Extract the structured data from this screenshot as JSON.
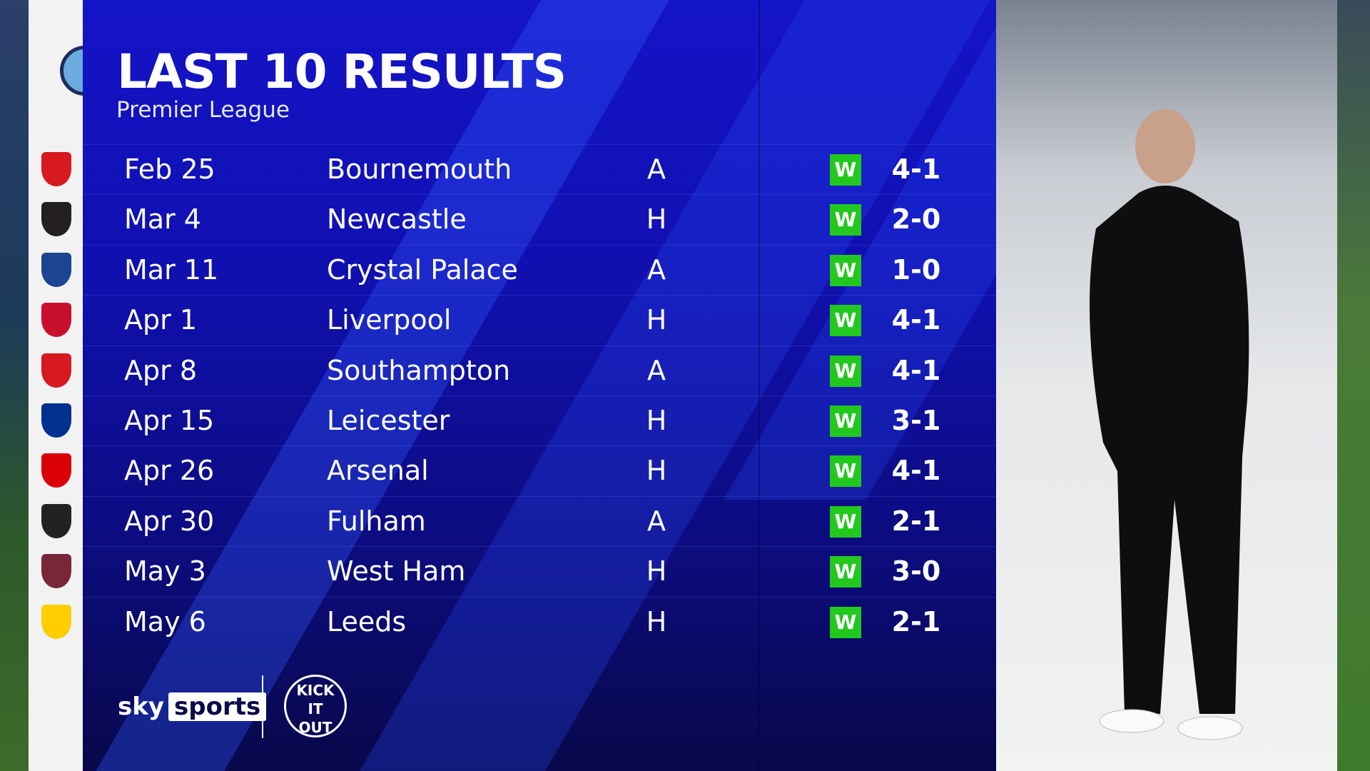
{
  "header": {
    "title": "LAST 10 RESULTS",
    "subtitle": "Premier League",
    "team_crest": "manchester-city-crest"
  },
  "colors": {
    "panel": "#1010b0",
    "win": "#22c81e"
  },
  "results": [
    {
      "date": "Feb 25",
      "opponent": "Bournemouth",
      "venue": "A",
      "result": "W",
      "score": "4-1",
      "crest": "bournemouth-crest",
      "crest_color": "#d71920"
    },
    {
      "date": "Mar 4",
      "opponent": "Newcastle",
      "venue": "H",
      "result": "W",
      "score": "2-0",
      "crest": "newcastle-crest",
      "crest_color": "#241f20"
    },
    {
      "date": "Mar 11",
      "opponent": "Crystal Palace",
      "venue": "A",
      "result": "W",
      "score": "1-0",
      "crest": "crystal-palace-crest",
      "crest_color": "#1b458f"
    },
    {
      "date": "Apr 1",
      "opponent": "Liverpool",
      "venue": "H",
      "result": "W",
      "score": "4-1",
      "crest": "liverpool-crest",
      "crest_color": "#c8102e"
    },
    {
      "date": "Apr 8",
      "opponent": "Southampton",
      "venue": "A",
      "result": "W",
      "score": "4-1",
      "crest": "southampton-crest",
      "crest_color": "#d71920"
    },
    {
      "date": "Apr 15",
      "opponent": "Leicester",
      "venue": "H",
      "result": "W",
      "score": "3-1",
      "crest": "leicester-crest",
      "crest_color": "#003090"
    },
    {
      "date": "Apr 26",
      "opponent": "Arsenal",
      "venue": "H",
      "result": "W",
      "score": "4-1",
      "crest": "arsenal-crest",
      "crest_color": "#db0007"
    },
    {
      "date": "Apr 30",
      "opponent": "Fulham",
      "venue": "A",
      "result": "W",
      "score": "2-1",
      "crest": "fulham-crest",
      "crest_color": "#222222"
    },
    {
      "date": "May 3",
      "opponent": "West Ham",
      "venue": "H",
      "result": "W",
      "score": "3-0",
      "crest": "west-ham-crest",
      "crest_color": "#7a263a"
    },
    {
      "date": "May 6",
      "opponent": "Leeds",
      "venue": "H",
      "result": "W",
      "score": "2-1",
      "crest": "leeds-crest",
      "crest_color": "#ffcd00"
    }
  ],
  "footer": {
    "brand_a": "sky",
    "brand_b": "sports",
    "partner_logo": "KICK IT OUT"
  }
}
